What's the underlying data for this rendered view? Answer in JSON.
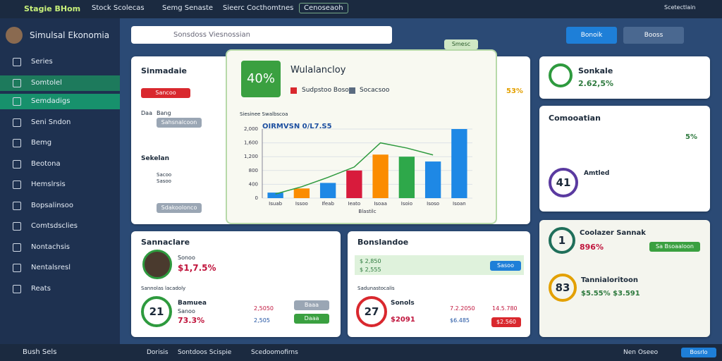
{
  "topbar": {
    "brand": "Stagie BHom",
    "tabs": [
      "Stock Scolecas",
      "Semg Senaste",
      "Sieerc Cocthomtnes",
      "Cenoseaoh"
    ],
    "user": "Scetectlain"
  },
  "sidebar": {
    "title": "Simulsal Ekonomia",
    "items": [
      "Series",
      "Somtolel",
      "Semdadigs",
      "Seni Sndon",
      "Bemg",
      "Beotona",
      "Hemslrsis",
      "Bopsalinsoo",
      "Comtsdsclies",
      "Nontachsis",
      "Nentalsresl",
      "Reats"
    ],
    "footer": "Bush Sels"
  },
  "toolbar": {
    "search": "Sonsdoss Viesnossian",
    "button": "Bonoik",
    "profile": "Booss"
  },
  "card_main": {
    "title": "Sinmadaie",
    "tag": "Sancoo",
    "row_a": "Daa",
    "row_b": "Bang",
    "chip_a": "Sahsnalcoon",
    "section": "Sekelan",
    "chip_b": "Sacoo",
    "chip_c": "Sasoo",
    "chip_d": "Sdakoolonco",
    "side_pct": "53%"
  },
  "popup": {
    "badge": "Smesc",
    "big": "40%",
    "title": "Wulalancloy",
    "legend": [
      "Sudpstoo Boso",
      "Socacsoo"
    ],
    "caption": "Siesinee Swalbscoa",
    "subtitle": "OIRMVSN 0/L7.S5",
    "xlabel": "Blastilc",
    "chart": {
      "type": "bar",
      "categories": [
        "Isuab",
        "Issoo",
        "Ifeab",
        "Ieato",
        "Isoaa",
        "Isoio",
        "Isoso",
        "Isoan"
      ],
      "values": [
        160,
        280,
        440,
        800,
        1260,
        1200,
        1060,
        2000
      ],
      "colors": [
        "#1e88e5",
        "#fb8c00",
        "#1e88e5",
        "#d81b3c",
        "#fb8c00",
        "#2ea84a",
        "#1e88e5",
        "#1e88e5"
      ],
      "line": {
        "color": "#2e9a3e",
        "values": [
          120,
          330,
          600,
          900,
          1600,
          1450,
          1250,
          null
        ]
      },
      "ylim": [
        0,
        2000
      ],
      "yticks": [
        0,
        400,
        800,
        {
          "value": 1200,
          "label": "1,200"
        },
        {
          "value": 1600,
          "label": "1,600"
        },
        {
          "value": 2000,
          "label": "2,000"
        }
      ],
      "grid": true
    }
  },
  "card_sales": {
    "title": "Sannaclare",
    "name": "Sonoo",
    "amount": "$1,7.5%",
    "section": "Sannolas lacadoly",
    "label": "Bamuea",
    "sub": "Sanoo",
    "pct": "73.3%",
    "gauge": "21",
    "v1": "2,5050",
    "v2": "2,505",
    "b1": "Baaa",
    "b2": "Daaa"
  },
  "card_balance": {
    "title": "Bonslandoe",
    "r1": "$ 2,850",
    "r2": "$ 2,555",
    "button": "Sasoo",
    "section": "Sadunastocalis",
    "label": "Sonols",
    "gauge": "27",
    "sub": "$2091",
    "v1": "7.2.2050",
    "v2": "$6.485",
    "v3": "14.5.780",
    "v4": "$2.560"
  },
  "card_score": {
    "title": "Sonkale",
    "value": "2.62,5%"
  },
  "card_comp": {
    "title": "Comooatian",
    "pct": "5%",
    "legend": "Amtled",
    "gauge": "41"
  },
  "card_cool": {
    "title": "Coolazer Sannak",
    "value": "896%",
    "button": "Sa Bsoaaloon",
    "gauge": "1"
  },
  "card_tan": {
    "title": "Tannialoritoon",
    "value": "$5.55% $3.591",
    "gauge": "83"
  },
  "bottombar": {
    "items": [
      "Dorisis",
      "Sontdoos Scispie",
      "Scedoomofirns"
    ],
    "right": "Nen Oseeo",
    "button": "Bosrlo"
  }
}
